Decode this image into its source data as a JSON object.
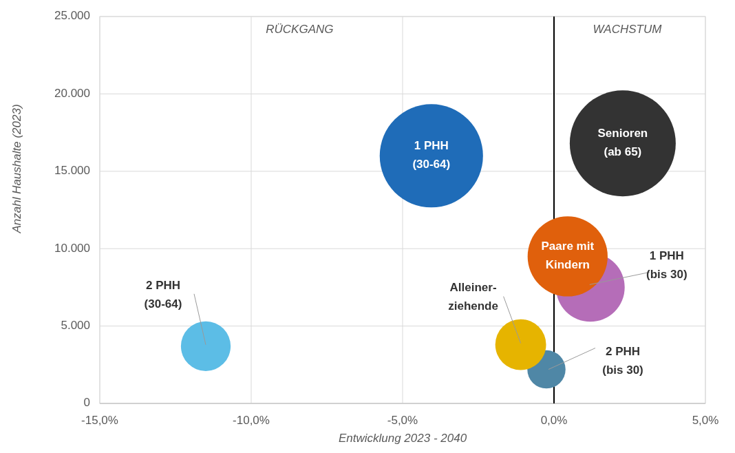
{
  "chart_data": {
    "type": "bubble",
    "xlabel": "Entwicklung 2023 - 2040",
    "ylabel": "Anzahl Haushalte (2023)",
    "annotations": [
      "RÜCKGANG",
      "WACHSTUM"
    ],
    "xlim": [
      -15,
      5
    ],
    "xticks": [
      {
        "value": -15,
        "label": "-15,0%"
      },
      {
        "value": -10,
        "label": "-10,0%"
      },
      {
        "value": -5,
        "label": "-5,0%"
      },
      {
        "value": 0,
        "label": "0,0%"
      },
      {
        "value": 5,
        "label": "5,0%"
      }
    ],
    "ylim": [
      0,
      25000
    ],
    "yticks": [
      0,
      {
        "value": 5000,
        "label": "5.000"
      },
      {
        "value": 10000,
        "label": "10.000"
      },
      {
        "value": 15000,
        "label": "15.000"
      },
      {
        "value": 20000,
        "label": "20.000"
      },
      {
        "value": 25000,
        "label": "25.000"
      }
    ],
    "grid": true,
    "legend": false,
    "ref_lines": [
      {
        "axis": "x",
        "value": 0,
        "color": "#000000"
      }
    ],
    "series": [
      {
        "name": "1 PHH\n(30-64)",
        "color": "#1f6cb8",
        "x": [
          -4.05
        ],
        "values": [
          16000
        ],
        "sizes": [
          0.95
        ]
      },
      {
        "name": "Senioren\n(ab 65)",
        "color": "#333333",
        "x": [
          2.27
        ],
        "values": [
          16800
        ],
        "sizes": [
          1
        ]
      },
      {
        "name": "1 PHH\n(bis 30)",
        "color": "#b56db8",
        "x": [
          1.2
        ],
        "values": [
          7500
        ],
        "sizes": [
          0.42
        ]
      },
      {
        "name": "Paare mit\nKindern",
        "color": "#e0600c",
        "x": [
          0.45
        ],
        "values": [
          9500
        ],
        "sizes": [
          0.57
        ]
      },
      {
        "name": "2 PHH\n(bis 30)",
        "color": "#4f87a6",
        "x": [
          -0.25
        ],
        "values": [
          2200
        ],
        "sizes": [
          0.13
        ]
      },
      {
        "name": "Alleiner-\nziehende",
        "color": "#e6b400",
        "x": [
          -1.1
        ],
        "values": [
          3800
        ],
        "sizes": [
          0.23
        ]
      },
      {
        "name": "2 PHH\n(30-64)",
        "color": "#5cbde6",
        "x": [
          -11.5
        ],
        "values": [
          3700
        ],
        "sizes": [
          0.22
        ]
      }
    ]
  }
}
